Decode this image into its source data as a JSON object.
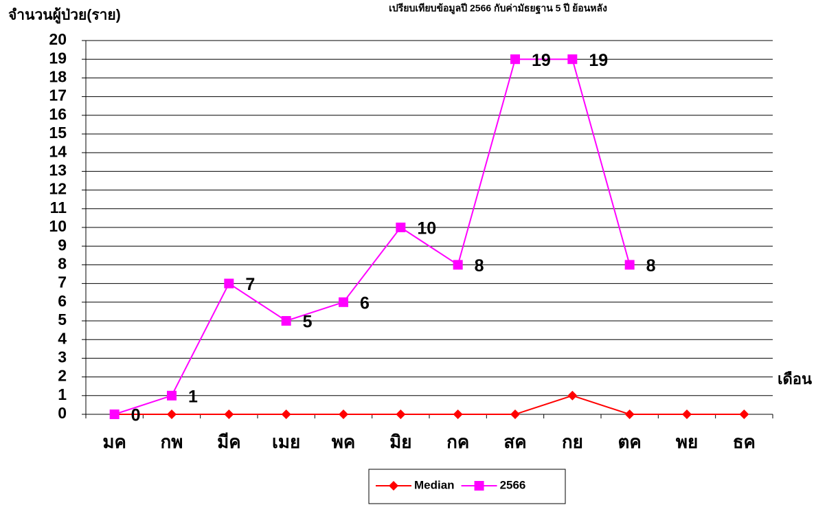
{
  "chart_data": {
    "type": "line",
    "title": "เปรียบเทียบข้อมูลปี 2566 กับค่ามัธยฐาน 5 ปี ย้อนหลัง",
    "y_label": "จำนวนผู้ป่วย(ราย)",
    "x_label": "เดือน",
    "categories": [
      "มค",
      "กพ",
      "มีค",
      "เมย",
      "พค",
      "มิย",
      "กค",
      "สค",
      "กย",
      "ตค",
      "พย",
      "ธค"
    ],
    "series": [
      {
        "name": "Median",
        "color": "#ff0000",
        "marker": "diamond",
        "values": [
          0,
          0,
          0,
          0,
          0,
          0,
          0,
          0,
          1,
          0,
          0,
          0
        ]
      },
      {
        "name": "2566",
        "color": "#ff00ff",
        "marker": "square",
        "data_labels": true,
        "values": [
          0,
          1,
          7,
          5,
          6,
          10,
          8,
          19,
          19,
          8,
          null,
          null
        ]
      }
    ],
    "ylim": [
      0,
      20
    ],
    "yticks": [
      0,
      1,
      2,
      3,
      4,
      5,
      6,
      7,
      8,
      9,
      10,
      11,
      12,
      13,
      14,
      15,
      16,
      17,
      18,
      19,
      20
    ],
    "grid": true,
    "legend": "bottom"
  }
}
